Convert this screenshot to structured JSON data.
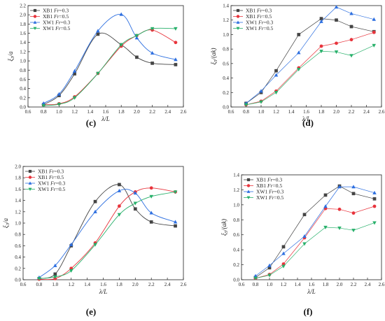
{
  "colors": {
    "XB1 Fr=0.3": "#444444",
    "XB1 Fr=0.5": "#e8343c",
    "XW1 Fr=0.3": "#2d6fe0",
    "XW1 Fr=0.5": "#27b06a"
  },
  "chart_data": [
    {
      "type": "line",
      "panel_label": "(c)",
      "xlabel": "λ/L",
      "ylabel": "ξ3/a",
      "xlim": [
        0.6,
        2.6
      ],
      "xticks": [
        0.6,
        0.8,
        1.0,
        1.2,
        1.4,
        1.6,
        1.8,
        2.0,
        2.2,
        2.4,
        2.6
      ],
      "ylim": [
        0,
        2.2
      ],
      "yticks": [
        0.0,
        0.2,
        0.4,
        0.6,
        0.8,
        1.0,
        1.2,
        1.4,
        1.6,
        1.8,
        2.0,
        2.2
      ],
      "legend_position": "top-left",
      "smooth": true,
      "series": [
        {
          "name": "XB1 Fr=0.3",
          "marker": "square",
          "x": [
            0.8,
            1.0,
            1.2,
            1.5,
            1.8,
            2.0,
            2.2,
            2.5
          ],
          "y": [
            0.05,
            0.25,
            0.72,
            1.58,
            1.35,
            1.08,
            0.95,
            0.92
          ]
        },
        {
          "name": "XB1 Fr=0.5",
          "marker": "circle",
          "x": [
            0.8,
            1.0,
            1.2,
            1.5,
            1.8,
            2.0,
            2.2,
            2.5
          ],
          "y": [
            0.05,
            0.07,
            0.22,
            0.73,
            1.32,
            1.55,
            1.67,
            1.4
          ]
        },
        {
          "name": "XW1 Fr=0.3",
          "marker": "triangle-up",
          "x": [
            0.8,
            1.0,
            1.2,
            1.5,
            1.8,
            2.0,
            2.2,
            2.5
          ],
          "y": [
            0.08,
            0.28,
            0.78,
            1.65,
            2.01,
            1.5,
            1.17,
            1.03
          ]
        },
        {
          "name": "XW1 Fr=0.5",
          "marker": "triangle-down",
          "x": [
            0.8,
            1.0,
            1.2,
            1.5,
            1.8,
            2.0,
            2.2,
            2.5
          ],
          "y": [
            0.03,
            0.06,
            0.2,
            0.73,
            1.35,
            1.55,
            1.7,
            1.7
          ]
        }
      ]
    },
    {
      "type": "line",
      "panel_label": "(d)",
      "xlabel": "λ/L",
      "ylabel": "ξ5/(ak)",
      "xlim": [
        0.6,
        2.6
      ],
      "xticks": [
        0.6,
        0.8,
        1.0,
        1.2,
        1.4,
        1.6,
        1.8,
        2.0,
        2.2,
        2.4,
        2.6
      ],
      "ylim": [
        0,
        1.4
      ],
      "yticks": [
        0.0,
        0.2,
        0.4,
        0.6,
        0.8,
        1.0,
        1.2,
        1.4
      ],
      "legend_position": "top-left",
      "smooth": false,
      "series": [
        {
          "name": "XB1 Fr=0.3",
          "marker": "square",
          "x": [
            0.8,
            1.0,
            1.2,
            1.5,
            1.8,
            2.0,
            2.2,
            2.5
          ],
          "y": [
            0.05,
            0.2,
            0.5,
            1.0,
            1.22,
            1.2,
            1.11,
            1.04
          ]
        },
        {
          "name": "XB1 Fr=0.5",
          "marker": "circle",
          "x": [
            0.8,
            1.0,
            1.2,
            1.5,
            1.8,
            2.0,
            2.2,
            2.5
          ],
          "y": [
            0.03,
            0.08,
            0.22,
            0.54,
            0.84,
            0.88,
            0.93,
            1.03
          ]
        },
        {
          "name": "XW1 Fr=0.3",
          "marker": "triangle-up",
          "x": [
            0.8,
            1.0,
            1.2,
            1.5,
            1.8,
            2.0,
            2.2,
            2.5
          ],
          "y": [
            0.05,
            0.22,
            0.44,
            0.75,
            1.18,
            1.38,
            1.29,
            1.21
          ]
        },
        {
          "name": "XW1 Fr=0.5",
          "marker": "triangle-down",
          "x": [
            0.8,
            1.0,
            1.2,
            1.5,
            1.8,
            2.0,
            2.2,
            2.5
          ],
          "y": [
            0.03,
            0.07,
            0.2,
            0.52,
            0.77,
            0.76,
            0.71,
            0.85
          ]
        }
      ]
    },
    {
      "type": "line",
      "panel_label": "(e)",
      "xlabel": "λ/L",
      "ylabel": "ξ3/a",
      "xlim": [
        0.6,
        2.6
      ],
      "xticks": [
        0.6,
        0.8,
        1.0,
        1.2,
        1.4,
        1.6,
        1.8,
        2.0,
        2.2,
        2.4,
        2.6
      ],
      "ylim": [
        0,
        2.0
      ],
      "yticks": [
        0.0,
        0.2,
        0.4,
        0.6,
        0.8,
        1.0,
        1.2,
        1.4,
        1.6,
        1.8,
        2.0
      ],
      "legend_position": "top-left",
      "smooth": true,
      "series": [
        {
          "name": "XB1 Fr=0.3",
          "marker": "square",
          "x": [
            0.8,
            1.0,
            1.2,
            1.5,
            1.8,
            2.0,
            2.2,
            2.5
          ],
          "y": [
            0.02,
            0.1,
            0.6,
            1.38,
            1.68,
            1.25,
            1.02,
            0.95
          ]
        },
        {
          "name": "XB1 Fr=0.5",
          "marker": "circle",
          "x": [
            0.8,
            1.0,
            1.2,
            1.5,
            1.8,
            2.0,
            2.2,
            2.5
          ],
          "y": [
            0.01,
            0.02,
            0.2,
            0.65,
            1.3,
            1.55,
            1.62,
            1.55
          ]
        },
        {
          "name": "XW1 Fr=0.3",
          "marker": "triangle-up",
          "x": [
            0.8,
            1.0,
            1.2,
            1.5,
            1.8,
            2.0,
            2.2,
            2.5
          ],
          "y": [
            0.04,
            0.25,
            0.62,
            1.2,
            1.57,
            1.53,
            1.18,
            1.02
          ]
        },
        {
          "name": "XW1 Fr=0.5",
          "marker": "triangle-down",
          "x": [
            0.8,
            1.0,
            1.2,
            1.5,
            1.8,
            2.0,
            2.2,
            2.5
          ],
          "y": [
            0.02,
            0.05,
            0.16,
            0.62,
            1.15,
            1.35,
            1.47,
            1.55
          ]
        }
      ]
    },
    {
      "type": "line",
      "panel_label": "(f)",
      "xlabel": "λ/L",
      "ylabel": "ξ5/(ak)",
      "xlim": [
        0.6,
        2.6
      ],
      "xticks": [
        0.6,
        0.8,
        1.0,
        1.2,
        1.4,
        1.6,
        1.8,
        2.0,
        2.2,
        2.4,
        2.6
      ],
      "ylim": [
        0,
        1.4
      ],
      "yticks": [
        0.0,
        0.2,
        0.4,
        0.6,
        0.8,
        1.0,
        1.2,
        1.4
      ],
      "legend_position": "top-left",
      "smooth": false,
      "series": [
        {
          "name": "XB1 Fr=0.3",
          "marker": "square",
          "x": [
            0.8,
            1.0,
            1.2,
            1.5,
            1.8,
            2.0,
            2.2,
            2.5
          ],
          "y": [
            0.03,
            0.16,
            0.44,
            0.87,
            1.13,
            1.25,
            1.15,
            1.08
          ]
        },
        {
          "name": "XB1 Fr=0.5",
          "marker": "circle",
          "x": [
            0.8,
            1.0,
            1.2,
            1.5,
            1.8,
            2.0,
            2.2,
            2.5
          ],
          "y": [
            0.02,
            0.07,
            0.21,
            0.56,
            0.95,
            0.94,
            0.89,
            0.98
          ]
        },
        {
          "name": "XW1 Fr=0.3",
          "marker": "triangle-up",
          "x": [
            0.8,
            1.0,
            1.2,
            1.5,
            1.8,
            2.0,
            2.2,
            2.5
          ],
          "y": [
            0.05,
            0.19,
            0.35,
            0.58,
            0.98,
            1.24,
            1.24,
            1.16
          ]
        },
        {
          "name": "XW1 Fr=0.5",
          "marker": "triangle-down",
          "x": [
            0.8,
            1.0,
            1.2,
            1.5,
            1.8,
            2.0,
            2.2,
            2.5
          ],
          "y": [
            0.02,
            0.06,
            0.18,
            0.48,
            0.7,
            0.69,
            0.66,
            0.76
          ]
        }
      ]
    }
  ]
}
